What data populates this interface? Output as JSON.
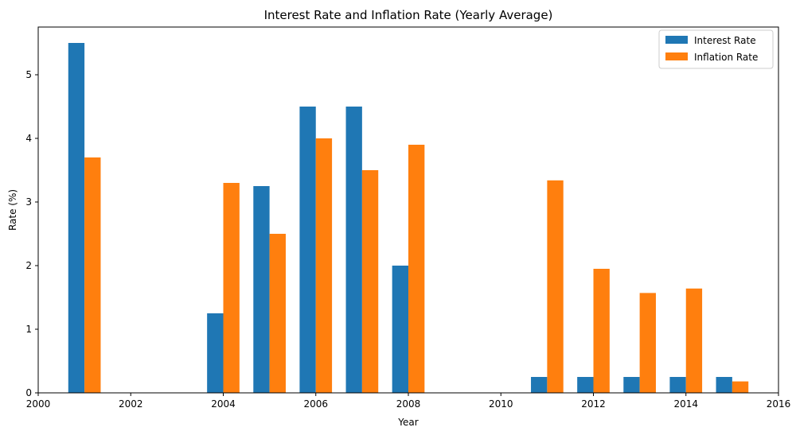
{
  "chart_data": {
    "type": "bar",
    "title": "Interest Rate and Inflation Rate (Yearly Average)",
    "xlabel": "Year",
    "ylabel": "Rate (%)",
    "xlim": [
      2000,
      2016
    ],
    "ylim": [
      0,
      5.75
    ],
    "xticks": [
      2000,
      2002,
      2004,
      2006,
      2008,
      2010,
      2012,
      2014,
      2016
    ],
    "yticks": [
      0,
      1,
      2,
      3,
      4,
      5
    ],
    "grid": false,
    "legend_position": "top-right",
    "categories": [
      2001,
      2002,
      2003,
      2004,
      2005,
      2006,
      2007,
      2008,
      2009,
      2010,
      2011,
      2012,
      2013,
      2014,
      2015
    ],
    "series": [
      {
        "name": "Interest Rate",
        "color": "#1f77b4",
        "values": [
          5.5,
          0,
          0,
          1.25,
          3.25,
          4.5,
          4.5,
          2.0,
          0,
          0,
          0.25,
          0.25,
          0.25,
          0.25,
          0.25
        ]
      },
      {
        "name": "Inflation Rate",
        "color": "#ff7f0e",
        "values": [
          3.7,
          0,
          0,
          3.3,
          2.5,
          4.0,
          3.5,
          3.9,
          0,
          0,
          3.34,
          1.95,
          1.57,
          1.64,
          0.18
        ]
      }
    ]
  }
}
